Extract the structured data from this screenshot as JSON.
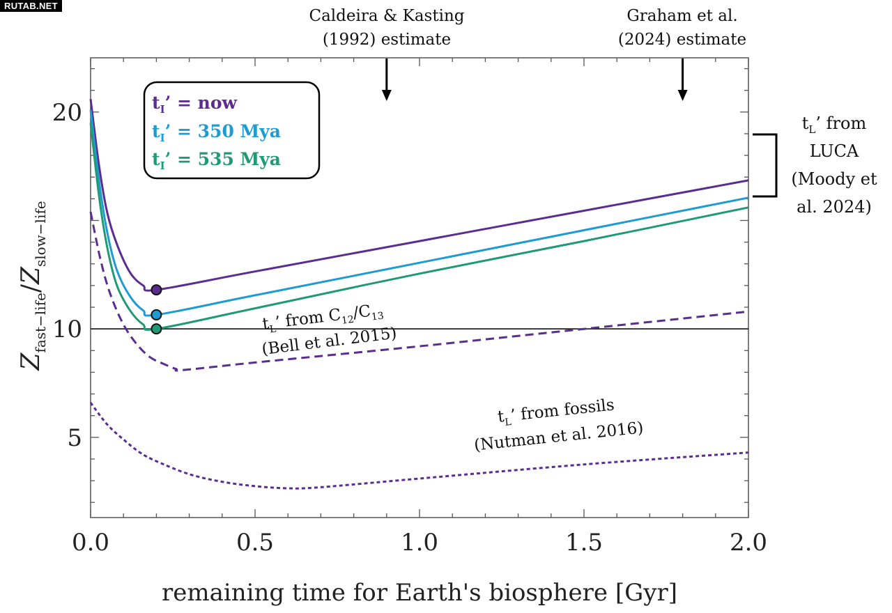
{
  "watermark": "RUTAB.NET",
  "chart_data": {
    "type": "line",
    "xlabel": "remaining time for Earth's biosphere [Gyr]",
    "ylabel": {
      "base": "Z",
      "sub1": "fast−life",
      "sep": "/",
      "sub2": "slow−life"
    },
    "xlim": [
      0.0,
      2.0
    ],
    "ylim": [
      1.3,
      22.5
    ],
    "x_ticks": [
      "0.0",
      "0.5",
      "1.0",
      "1.5",
      "2.0"
    ],
    "y_ticks": [
      "5",
      "10",
      "20"
    ],
    "y_tick_values": [
      5,
      10,
      20
    ],
    "x_tick_values": [
      0.0,
      0.5,
      1.0,
      1.5,
      2.0
    ],
    "reference_line": {
      "y": 10
    },
    "colors": {
      "purple": "#5b2d91",
      "blue": "#1e9bd0",
      "green": "#1f9a74",
      "black": "#000000"
    },
    "series": [
      {
        "name": "t_I' = now",
        "color": "#5b2d91",
        "style": "solid",
        "marker": {
          "x": 0.2,
          "y": 11.8
        },
        "x": [
          0.0,
          0.025,
          0.05,
          0.08,
          0.12,
          0.16,
          0.2,
          0.5,
          1.0,
          1.5,
          2.0
        ],
        "y": [
          20.6,
          17.6,
          15.4,
          13.9,
          12.6,
          12.0,
          11.8,
          12.65,
          14.05,
          15.45,
          16.85
        ]
      },
      {
        "name": "t_I' = 350 Mya",
        "color": "#1e9bd0",
        "style": "solid",
        "marker": {
          "x": 0.2,
          "y": 10.65
        },
        "x": [
          0.0,
          0.025,
          0.05,
          0.08,
          0.12,
          0.16,
          0.2,
          0.5,
          1.0,
          1.5,
          2.0
        ],
        "y": [
          20.1,
          16.9,
          14.5,
          12.7,
          11.5,
          10.85,
          10.65,
          11.55,
          13.05,
          14.55,
          16.05
        ]
      },
      {
        "name": "t_I' = 535 Mya",
        "color": "#1f9a74",
        "style": "solid",
        "marker": {
          "x": 0.2,
          "y": 10.0
        },
        "x": [
          0.0,
          0.025,
          0.05,
          0.08,
          0.12,
          0.16,
          0.2,
          0.5,
          1.0,
          1.5,
          2.0
        ],
        "y": [
          19.5,
          16.2,
          13.8,
          12.0,
          10.85,
          10.2,
          10.0,
          10.95,
          12.55,
          14.05,
          15.6
        ]
      },
      {
        "name": "t_L' from C12/C13",
        "color": "#5b2d91",
        "style": "dashed",
        "x": [
          0.0,
          0.03,
          0.06,
          0.1,
          0.14,
          0.18,
          0.22,
          0.26,
          0.28,
          0.5,
          1.0,
          1.5,
          2.0
        ],
        "y": [
          15.4,
          13.2,
          11.6,
          10.2,
          9.3,
          8.7,
          8.4,
          8.15,
          8.1,
          8.45,
          9.2,
          10.0,
          10.8
        ]
      },
      {
        "name": "t_L' from fossils",
        "color": "#5b2d91",
        "style": "dotted",
        "x": [
          0.0,
          0.05,
          0.1,
          0.15,
          0.2,
          0.3,
          0.4,
          0.5,
          0.6,
          0.7,
          1.0,
          1.5,
          2.0
        ],
        "y": [
          6.6,
          5.6,
          4.9,
          4.3,
          3.9,
          3.3,
          2.95,
          2.75,
          2.65,
          2.7,
          3.1,
          3.75,
          4.3
        ]
      }
    ],
    "legend": {
      "position": "top-left",
      "entries": [
        {
          "base": "t",
          "sub": "I",
          "rest": "’ = now",
          "color": "#5b2d91"
        },
        {
          "base": "t",
          "sub": "I",
          "rest": "’ = 350 Mya",
          "color": "#1e9bd0"
        },
        {
          "base": "t",
          "sub": "I",
          "rest": "’ = 535 Mya",
          "color": "#1f9a74"
        }
      ]
    },
    "annotations": {
      "caldeira": {
        "line1": "Caldeira & Kasting",
        "line2": "(1992) estimate",
        "x": 0.9
      },
      "graham": {
        "line1": "Graham et al.",
        "line2": "(2024) estimate",
        "x": 1.8
      },
      "luca": {
        "line1a": "t",
        "line1sub": "L",
        "line1b": "’ from",
        "line2": "LUCA",
        "line3": "(Moody et",
        "line4": "al. 2024)"
      },
      "bell": {
        "t": "t",
        "tsub": "L",
        "mid": "’ from C",
        "c1": "12",
        "slash": "/C",
        "c2": "13",
        "line2": "(Bell et al. 2015)"
      },
      "nutman": {
        "t": "t",
        "tsub": "L",
        "mid": "’ from fossils",
        "line2": "(Nutman et al. 2016)"
      }
    }
  }
}
